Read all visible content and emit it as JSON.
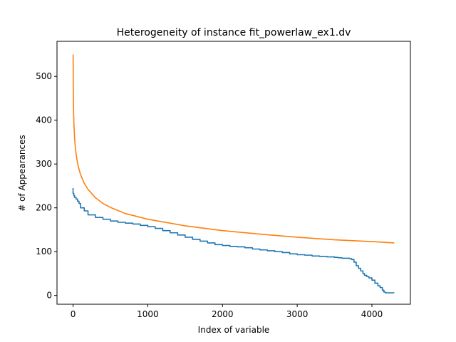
{
  "chart_data": {
    "type": "line",
    "title": "Heterogeneity of instance fit_powerlaw_ex1.dv",
    "xlabel": "Index of variable",
    "ylabel": "# of Appearances",
    "xlim": [
      -215,
      4515
    ],
    "ylim": [
      -20,
      580
    ],
    "xticks": [
      0,
      1000,
      2000,
      3000,
      4000
    ],
    "yticks": [
      0,
      100,
      200,
      300,
      400,
      500
    ],
    "grid": false,
    "series": [
      {
        "color": "#1f77b4",
        "style": "step",
        "x": [
          0,
          10,
          20,
          40,
          60,
          80,
          100,
          150,
          200,
          300,
          400,
          500,
          600,
          700,
          800,
          900,
          1000,
          1100,
          1200,
          1300,
          1400,
          1500,
          1600,
          1700,
          1800,
          1900,
          2000,
          2100,
          2200,
          2300,
          2400,
          2500,
          2600,
          2700,
          2800,
          2900,
          3000,
          3100,
          3200,
          3300,
          3400,
          3500,
          3550,
          3600,
          3650,
          3700,
          3730,
          3760,
          3790,
          3820,
          3850,
          3880,
          3900,
          3930,
          3960,
          4000,
          4040,
          4080,
          4110,
          4140,
          4160,
          4180,
          4200,
          4300
        ],
        "y": [
          245,
          233,
          228,
          224,
          220,
          215,
          210,
          200,
          193,
          184,
          178,
          174,
          170,
          167,
          165,
          163,
          160,
          157,
          153,
          148,
          143,
          138,
          133,
          128,
          124,
          120,
          116,
          114,
          112,
          111,
          109,
          106,
          104,
          102,
          100,
          98,
          95,
          93,
          92,
          90,
          89,
          88,
          87,
          86,
          85,
          85,
          84,
          82,
          76,
          68,
          62,
          56,
          50,
          46,
          43,
          40,
          35,
          28,
          22,
          18,
          12,
          8,
          6,
          6
        ]
      },
      {
        "color": "#ff7f0e",
        "style": "line",
        "x": [
          1,
          2,
          3,
          5,
          8,
          12,
          18,
          25,
          35,
          50,
          70,
          100,
          150,
          200,
          300,
          400,
          500,
          700,
          1000,
          1500,
          2000,
          2500,
          3000,
          3500,
          4000,
          4300
        ],
        "y": [
          550,
          501,
          474,
          442,
          413,
          390,
          367,
          349,
          331,
          312,
          294,
          276,
          256,
          242,
          223,
          210,
          201,
          187,
          174,
          159,
          148,
          140,
          133,
          127,
          123,
          120
        ]
      }
    ]
  }
}
